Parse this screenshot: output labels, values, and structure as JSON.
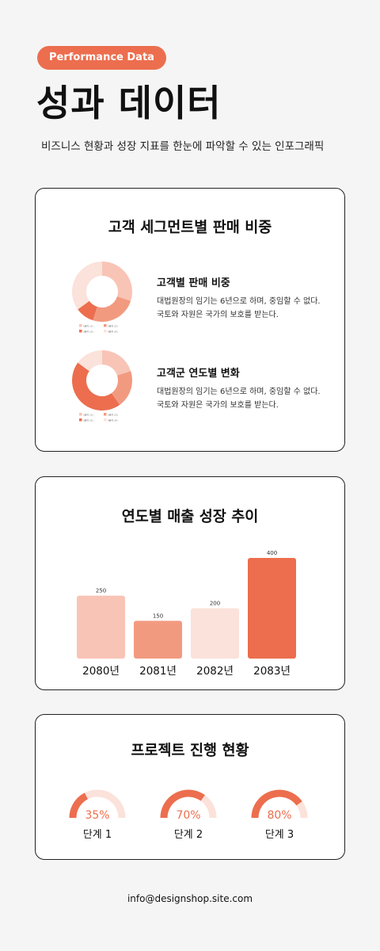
{
  "header": {
    "tag": "Performance Data",
    "title": "성과 데이터",
    "subtitle": "비즈니스 현황과 성장 지표를 한눈에 파악할 수 있는 인포그래픽"
  },
  "segments_card": {
    "title": "고객 세그먼트별 판매 비중",
    "items": [
      {
        "heading": "고객별 판매 비중",
        "desc_line1": "대법원장의 임기는 6년으로 하며, 중임할 수 없다.",
        "desc_line2": "국토와 자원은 국가의 보호를 받는다."
      },
      {
        "heading": "고객군 연도별 변화",
        "desc_line1": "대법원장의 임기는 6년으로 하며, 중임할 수 없다.",
        "desc_line2": "국토와 자원은 국가의 보호를 받는다."
      }
    ]
  },
  "revenue_card": {
    "title": "연도별 매출 성장 추이"
  },
  "progress_card": {
    "title": "프로젝트 진행 현황"
  },
  "footer": {
    "email": "info@designshop.site.com"
  },
  "colors": {
    "accent": "#ec6e4e",
    "mid": "#f29a80",
    "light": "#f8c4b6",
    "pale": "#fbe2da"
  },
  "chart_data": [
    {
      "type": "pie",
      "donut": true,
      "categories": [
        "1분기 (1)",
        "2분기 (2)",
        "3분기 (3)",
        "4분기 (4)"
      ],
      "values": [
        30,
        25,
        10,
        35
      ],
      "colors": [
        "#f8c4b6",
        "#f29a80",
        "#ec6e4e",
        "#fbe2da"
      ]
    },
    {
      "type": "pie",
      "donut": true,
      "categories": [
        "1분기 (1)",
        "2분기 (2)",
        "3분기 (3)",
        "4분기 (4)"
      ],
      "values": [
        20,
        20,
        45,
        15
      ],
      "colors": [
        "#f8c4b6",
        "#f29a80",
        "#ec6e4e",
        "#fbe2da"
      ]
    },
    {
      "type": "bar",
      "categories": [
        "2080년",
        "2081년",
        "2082년",
        "2083년"
      ],
      "values": [
        250,
        150,
        200,
        400
      ],
      "colors": [
        "#f8c4b6",
        "#f29a80",
        "#fbe2da",
        "#ec6e4e"
      ],
      "ylim": [
        0,
        400
      ]
    },
    {
      "type": "gauge",
      "categories": [
        "단계 1",
        "단계 2",
        "단계 3"
      ],
      "values": [
        35,
        70,
        80
      ],
      "value_labels": [
        "35%",
        "70%",
        "80%"
      ]
    }
  ]
}
